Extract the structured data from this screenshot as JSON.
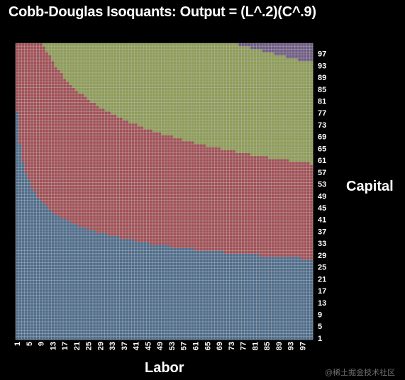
{
  "chart_data": {
    "type": "heatmap",
    "title": "Cobb-Douglas Isoquants: Output = (L^.2)(C^.9)",
    "xlabel": "Labor",
    "ylabel": "Capital",
    "x_range": [
      1,
      100
    ],
    "y_range": [
      1,
      100
    ],
    "x_ticks": [
      1,
      5,
      9,
      13,
      17,
      21,
      25,
      29,
      33,
      37,
      41,
      45,
      49,
      53,
      57,
      61,
      65,
      69,
      73,
      77,
      81,
      85,
      89,
      93,
      97
    ],
    "y_ticks": [
      1,
      5,
      9,
      13,
      17,
      21,
      25,
      29,
      33,
      37,
      41,
      45,
      49,
      53,
      57,
      61,
      65,
      69,
      73,
      77,
      81,
      85,
      89,
      93,
      97
    ],
    "exponent_labor": 0.2,
    "exponent_capital": 0.9,
    "output_bands": [
      {
        "min": 0,
        "max": 50,
        "color": "#4e6d8d"
      },
      {
        "min": 50,
        "max": 100,
        "color": "#a34f55"
      },
      {
        "min": 100,
        "max": 150,
        "color": "#8e9d55"
      },
      {
        "min": 150,
        "max": 200,
        "color": "#6f5b85"
      }
    ],
    "grid": true,
    "grid_color": "#b9b9b9"
  },
  "watermark": "@稀土掘金技术社区"
}
